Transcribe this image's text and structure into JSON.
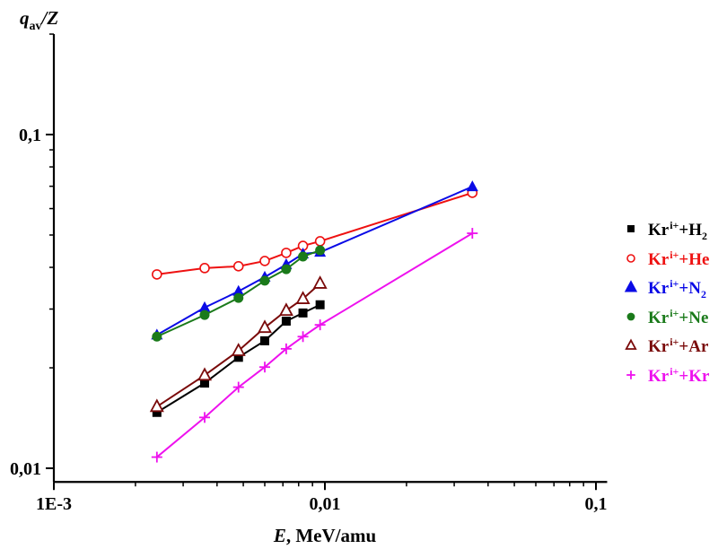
{
  "chart_data": {
    "type": "scatter",
    "title": "",
    "xlabel": "E, MeV/amu",
    "xlabel_italic_part": "E",
    "xlabel_rest": ", MeV/amu",
    "ylabel": "q_av/Z",
    "ylabel_main": "q",
    "ylabel_sub": "av",
    "ylabel_tail": "/Z",
    "xscale": "log",
    "yscale": "log",
    "xlim": [
      0.001,
      0.11
    ],
    "ylim": [
      0.0091,
      0.2
    ],
    "x_ticks": [
      {
        "value": 0.001,
        "label": "1E-3"
      },
      {
        "value": 0.01,
        "label": "0,01"
      },
      {
        "value": 0.1,
        "label": "0,1"
      }
    ],
    "y_ticks": [
      {
        "value": 0.01,
        "label": "0,01"
      },
      {
        "value": 0.1,
        "label": "0,1"
      }
    ],
    "grid": false,
    "legend_position": "right",
    "series": [
      {
        "name": "Kr i+ + H2",
        "ion": "Kr",
        "charge": "i+",
        "target": "+H",
        "target_sub": "2",
        "marker": "filled-square",
        "color": "#000000",
        "x": [
          0.0024,
          0.0036,
          0.0048,
          0.006,
          0.0072,
          0.0083,
          0.0096
        ],
        "y": [
          0.0147,
          0.018,
          0.0215,
          0.0241,
          0.0276,
          0.0292,
          0.0309
        ]
      },
      {
        "name": "Kr i+ + He",
        "ion": "Kr",
        "charge": "i+",
        "target": "+He",
        "target_sub": "",
        "marker": "open-circle",
        "color": "#ee1111",
        "x": [
          0.0024,
          0.0036,
          0.0048,
          0.006,
          0.0072,
          0.0083,
          0.0096,
          0.035
        ],
        "y": [
          0.0381,
          0.0398,
          0.0403,
          0.0418,
          0.0442,
          0.0464,
          0.0479,
          0.0669
        ]
      },
      {
        "name": "Kr i+ + N2",
        "ion": "Kr",
        "charge": "i+",
        "target": "+N",
        "target_sub": "2",
        "marker": "filled-triangle",
        "color": "#0a0ae6",
        "x": [
          0.0024,
          0.0036,
          0.0048,
          0.006,
          0.0072,
          0.0083,
          0.0096,
          0.035
        ],
        "y": [
          0.0251,
          0.0303,
          0.0339,
          0.0374,
          0.0408,
          0.0439,
          0.0444,
          0.0698
        ]
      },
      {
        "name": "Kr i+ + Ne",
        "ion": "Kr",
        "charge": "i+",
        "target": "+Ne",
        "target_sub": "",
        "marker": "filled-circle",
        "color": "#1a7a1a",
        "x": [
          0.0024,
          0.0036,
          0.0048,
          0.006,
          0.0072,
          0.0083,
          0.0096
        ],
        "y": [
          0.0248,
          0.0288,
          0.0324,
          0.0365,
          0.0395,
          0.0431,
          0.045
        ]
      },
      {
        "name": "Kr i+ + Ar",
        "ion": "Kr",
        "charge": "i+",
        "target": "+Ar",
        "target_sub": "",
        "marker": "open-triangle",
        "color": "#7a0a0a",
        "x": [
          0.0024,
          0.0036,
          0.0048,
          0.006,
          0.0072,
          0.0083,
          0.0096
        ],
        "y": [
          0.0153,
          0.019,
          0.0225,
          0.0264,
          0.0297,
          0.0322,
          0.0358
        ]
      },
      {
        "name": "Kr i+ + Kr",
        "ion": "Kr",
        "charge": "i+",
        "target": "+Kr",
        "target_sub": "",
        "marker": "plus",
        "color": "#ee11ee",
        "x": [
          0.0024,
          0.0036,
          0.0048,
          0.006,
          0.0072,
          0.0083,
          0.0096,
          0.035
        ],
        "y": [
          0.0108,
          0.0142,
          0.0175,
          0.0201,
          0.0228,
          0.0248,
          0.0269,
          0.0506
        ]
      }
    ]
  }
}
